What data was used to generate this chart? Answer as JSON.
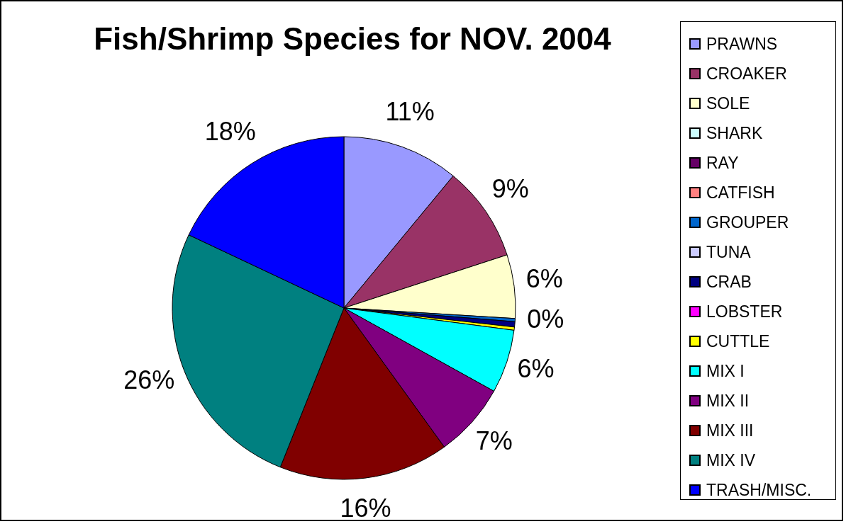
{
  "chart_data": {
    "type": "pie",
    "title": "Fish/Shrimp Species for NOV. 2004",
    "categories": [
      "PRAWNS",
      "CROAKER",
      "SOLE",
      "SHARK",
      "RAY",
      "CATFISH",
      "GROUPER",
      "TUNA",
      "CRAB",
      "LOBSTER",
      "CUTTLE",
      "MIX I",
      "MIX II",
      "MIX III",
      "MIX IV",
      "TRASH/MISC."
    ],
    "values": [
      11,
      9,
      6,
      null,
      null,
      null,
      0.3,
      null,
      0.5,
      null,
      0.3,
      6,
      7,
      16,
      26,
      18
    ],
    "colors": [
      "#9999ff",
      "#993366",
      "#ffffcc",
      "#ccffff",
      "#660066",
      "#ff8080",
      "#0066cc",
      "#ccccff",
      "#000080",
      "#ff00ff",
      "#ffff00",
      "#00ffff",
      "#800080",
      "#800000",
      "#008080",
      "#0000ff"
    ],
    "value_labels": [
      "11%",
      "9%",
      "6%",
      null,
      null,
      null,
      "0%",
      null,
      null,
      null,
      null,
      "6%",
      "7%",
      "16%",
      "26%",
      "18%"
    ],
    "legend": "right"
  }
}
